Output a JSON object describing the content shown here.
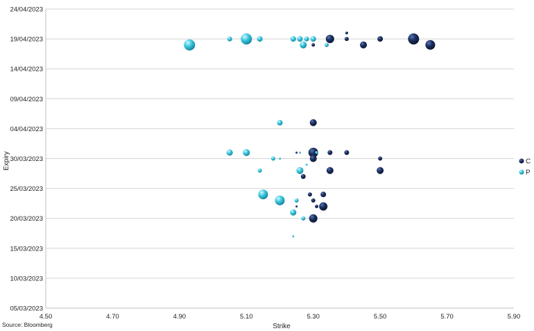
{
  "chart_data": {
    "type": "scatter",
    "xlabel": "Strike",
    "ylabel": "Expiry",
    "xlim": [
      4.5,
      5.9
    ],
    "ylim": [
      "05/03/2023",
      "24/04/2023"
    ],
    "x_ticks": [
      "4.50",
      "4.70",
      "4.90",
      "5.10",
      "5.30",
      "5.50",
      "5.70",
      "5.90"
    ],
    "y_ticks": [
      "05/03/2023",
      "10/03/2023",
      "15/03/2023",
      "20/03/2023",
      "25/03/2023",
      "30/03/2023",
      "04/04/2023",
      "09/04/2023",
      "14/04/2023",
      "19/04/2023",
      "24/04/2023"
    ],
    "grid": "horizontal",
    "legend_position": "right",
    "source": "Source: Bloomberg",
    "colors": {
      "C": "#1c2f5e",
      "P": "#3cc8e0"
    },
    "series": [
      {
        "name": "C",
        "color": "#1c2f5e",
        "points": [
          {
            "x": 5.4,
            "y": "20/04/2023",
            "size": 2
          },
          {
            "x": 5.35,
            "y": "19/04/2023",
            "size": 6
          },
          {
            "x": 5.4,
            "y": "19/04/2023",
            "size": 3
          },
          {
            "x": 5.5,
            "y": "19/04/2023",
            "size": 4
          },
          {
            "x": 5.6,
            "y": "19/04/2023",
            "size": 8
          },
          {
            "x": 5.3,
            "y": "18/04/2023",
            "size": 2.5
          },
          {
            "x": 5.45,
            "y": "18/04/2023",
            "size": 5
          },
          {
            "x": 5.65,
            "y": "18/04/2023",
            "size": 7
          },
          {
            "x": 5.3,
            "y": "05/04/2023",
            "size": 5
          },
          {
            "x": 5.3,
            "y": "31/03/2023",
            "size": 7
          },
          {
            "x": 5.35,
            "y": "31/03/2023",
            "size": 3.5
          },
          {
            "x": 5.4,
            "y": "31/03/2023",
            "size": 3.5
          },
          {
            "x": 5.25,
            "y": "31/03/2023",
            "size": 1.5
          },
          {
            "x": 5.3,
            "y": "30/03/2023",
            "size": 5
          },
          {
            "x": 5.5,
            "y": "30/03/2023",
            "size": 3
          },
          {
            "x": 5.35,
            "y": "28/03/2023",
            "size": 5
          },
          {
            "x": 5.5,
            "y": "28/03/2023",
            "size": 5
          },
          {
            "x": 5.27,
            "y": "27/03/2023",
            "size": 3.5
          },
          {
            "x": 5.29,
            "y": "24/03/2023",
            "size": 3
          },
          {
            "x": 5.33,
            "y": "24/03/2023",
            "size": 4
          },
          {
            "x": 5.3,
            "y": "23/03/2023",
            "size": 3
          },
          {
            "x": 5.33,
            "y": "22/03/2023",
            "size": 6
          },
          {
            "x": 5.31,
            "y": "22/03/2023",
            "size": 2.5
          },
          {
            "x": 5.25,
            "y": "22/03/2023",
            "size": 1.5
          },
          {
            "x": 5.3,
            "y": "20/03/2023",
            "size": 6
          }
        ]
      },
      {
        "name": "P",
        "color": "#3cc8e0",
        "points": [
          {
            "x": 4.93,
            "y": "18/04/2023",
            "size": 8
          },
          {
            "x": 5.05,
            "y": "19/04/2023",
            "size": 3.5
          },
          {
            "x": 5.1,
            "y": "19/04/2023",
            "size": 8
          },
          {
            "x": 5.14,
            "y": "19/04/2023",
            "size": 4
          },
          {
            "x": 5.24,
            "y": "19/04/2023",
            "size": 4
          },
          {
            "x": 5.26,
            "y": "19/04/2023",
            "size": 4
          },
          {
            "x": 5.28,
            "y": "19/04/2023",
            "size": 3.5
          },
          {
            "x": 5.3,
            "y": "19/04/2023",
            "size": 4
          },
          {
            "x": 5.27,
            "y": "18/04/2023",
            "size": 5
          },
          {
            "x": 5.34,
            "y": "18/04/2023",
            "size": 3
          },
          {
            "x": 5.2,
            "y": "05/04/2023",
            "size": 4
          },
          {
            "x": 5.05,
            "y": "31/03/2023",
            "size": 4.5
          },
          {
            "x": 5.1,
            "y": "31/03/2023",
            "size": 5
          },
          {
            "x": 5.26,
            "y": "31/03/2023",
            "size": 1.5
          },
          {
            "x": 5.31,
            "y": "31/03/2023",
            "size": 2
          },
          {
            "x": 5.18,
            "y": "30/03/2023",
            "size": 3
          },
          {
            "x": 5.2,
            "y": "30/03/2023",
            "size": 1.5
          },
          {
            "x": 5.28,
            "y": "29/03/2023",
            "size": 1.5
          },
          {
            "x": 5.14,
            "y": "28/03/2023",
            "size": 3
          },
          {
            "x": 5.26,
            "y": "28/03/2023",
            "size": 5
          },
          {
            "x": 5.15,
            "y": "24/03/2023",
            "size": 7
          },
          {
            "x": 5.25,
            "y": "23/03/2023",
            "size": 3
          },
          {
            "x": 5.2,
            "y": "23/03/2023",
            "size": 7
          },
          {
            "x": 5.24,
            "y": "21/03/2023",
            "size": 4.5
          },
          {
            "x": 5.27,
            "y": "20/03/2023",
            "size": 3
          },
          {
            "x": 5.24,
            "y": "17/03/2023",
            "size": 1.5
          }
        ]
      }
    ]
  }
}
